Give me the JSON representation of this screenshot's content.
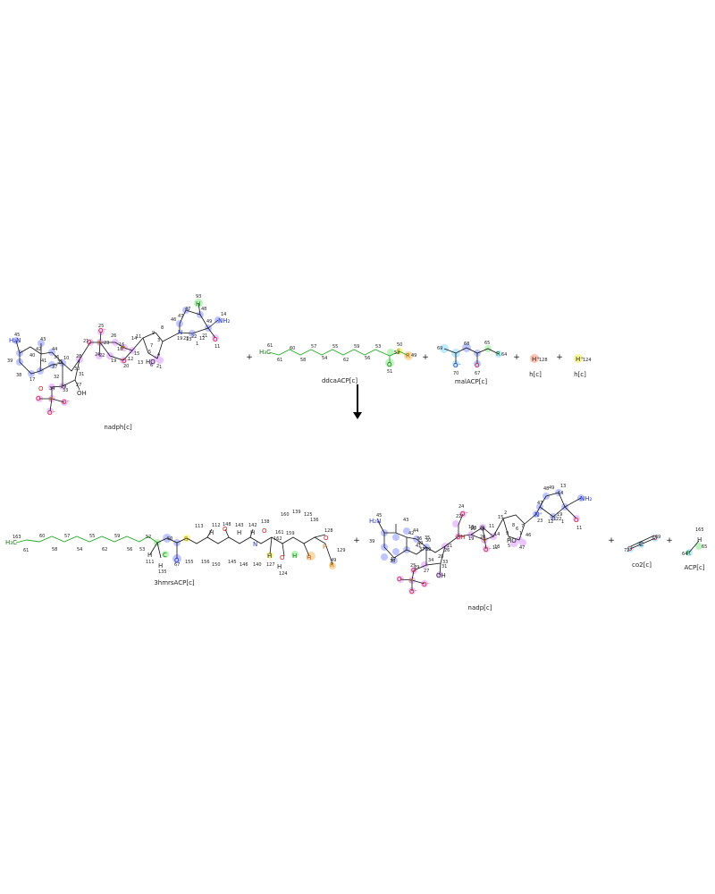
{
  "colors": {
    "blue": "#aab4ff",
    "pink": "#e6b3ff",
    "green": "#a8f0a8",
    "cyan": "#a8e4ff",
    "yellow": "#f5f57a",
    "orange": "#ffcc88",
    "salmon": "#ffb3a0"
  },
  "substrates": {
    "nadph": "nadph[c]",
    "ddcaACP": "ddcaACP[c]",
    "malACP": "malACP[c]",
    "h1": "h[c]",
    "h2": "h[c]"
  },
  "products": {
    "3hmrsACP": "3hmrsACP[c]",
    "nadp": "nadp[c]",
    "co2": "co2[c]",
    "ACP": "ACP[c]"
  },
  "plus": "+",
  "atoms": {
    "nadph": [
      "45",
      "43",
      "42",
      "44",
      "39",
      "38",
      "17",
      "40",
      "41",
      "36",
      "37",
      "35",
      "10",
      "32",
      "33",
      "34",
      "30",
      "31",
      "27",
      "29",
      "28",
      "25",
      "26",
      "24",
      "21",
      "23",
      "22",
      "18",
      "19",
      "20",
      "16",
      "14",
      "15",
      "11",
      "12",
      "13",
      "9",
      "8",
      "3",
      "7",
      "6",
      "2",
      "5",
      "4",
      "1",
      "93",
      "47",
      "46",
      "48",
      "49",
      "47",
      "14",
      "13",
      "19",
      "22",
      "21",
      "23",
      "12",
      "1",
      "11"
    ],
    "ddcaACP": [
      "61",
      "61",
      "60",
      "58",
      "57",
      "55",
      "54",
      "62",
      "59",
      "56",
      "53",
      "52",
      "50",
      "51",
      "49"
    ],
    "malACP": [
      "69",
      "68",
      "70",
      "67",
      "65",
      "64"
    ],
    "h1": [
      "128"
    ],
    "h2": [
      "124"
    ],
    "hmrs": [
      "163",
      "61",
      "60",
      "58",
      "57",
      "55",
      "54",
      "62",
      "59",
      "56",
      "53",
      "52",
      "50",
      "111",
      "135",
      "67",
      "155",
      "156",
      "150",
      "145",
      "146",
      "140",
      "113",
      "112",
      "148",
      "143",
      "142",
      "138",
      "162",
      "161",
      "159",
      "160",
      "139",
      "125",
      "136",
      "124",
      "127",
      "128",
      "129",
      "49"
    ],
    "nadp": [
      "45",
      "43",
      "42",
      "44",
      "39",
      "38",
      "17",
      "41",
      "40",
      "36",
      "37",
      "35",
      "30",
      "32",
      "33",
      "34",
      "31",
      "25",
      "27",
      "29",
      "28",
      "26",
      "24",
      "21",
      "23",
      "22",
      "18",
      "19",
      "20",
      "16",
      "14",
      "15",
      "11",
      "12",
      "13",
      "9",
      "8",
      "7",
      "6",
      "2",
      "5",
      "4",
      "1",
      "46",
      "47",
      "48",
      "49",
      "47",
      "13",
      "14",
      "19",
      "22",
      "21",
      "23",
      "12",
      "1",
      "11"
    ],
    "co2": [
      "72",
      "69"
    ],
    "ACP": [
      "165",
      "65",
      "64"
    ]
  },
  "symbols": {
    "H2N": "H₂N",
    "NH2": "NH₂",
    "OH": "OH",
    "HO": "HO",
    "O": "O",
    "Ominus": "O⁻",
    "P": "P",
    "N": "N",
    "Nplus": "N⁺",
    "H": "H",
    "H3C": "H₃C",
    "S": "S",
    "R": "R",
    "C": "C",
    "Hplus": "H⁺"
  }
}
